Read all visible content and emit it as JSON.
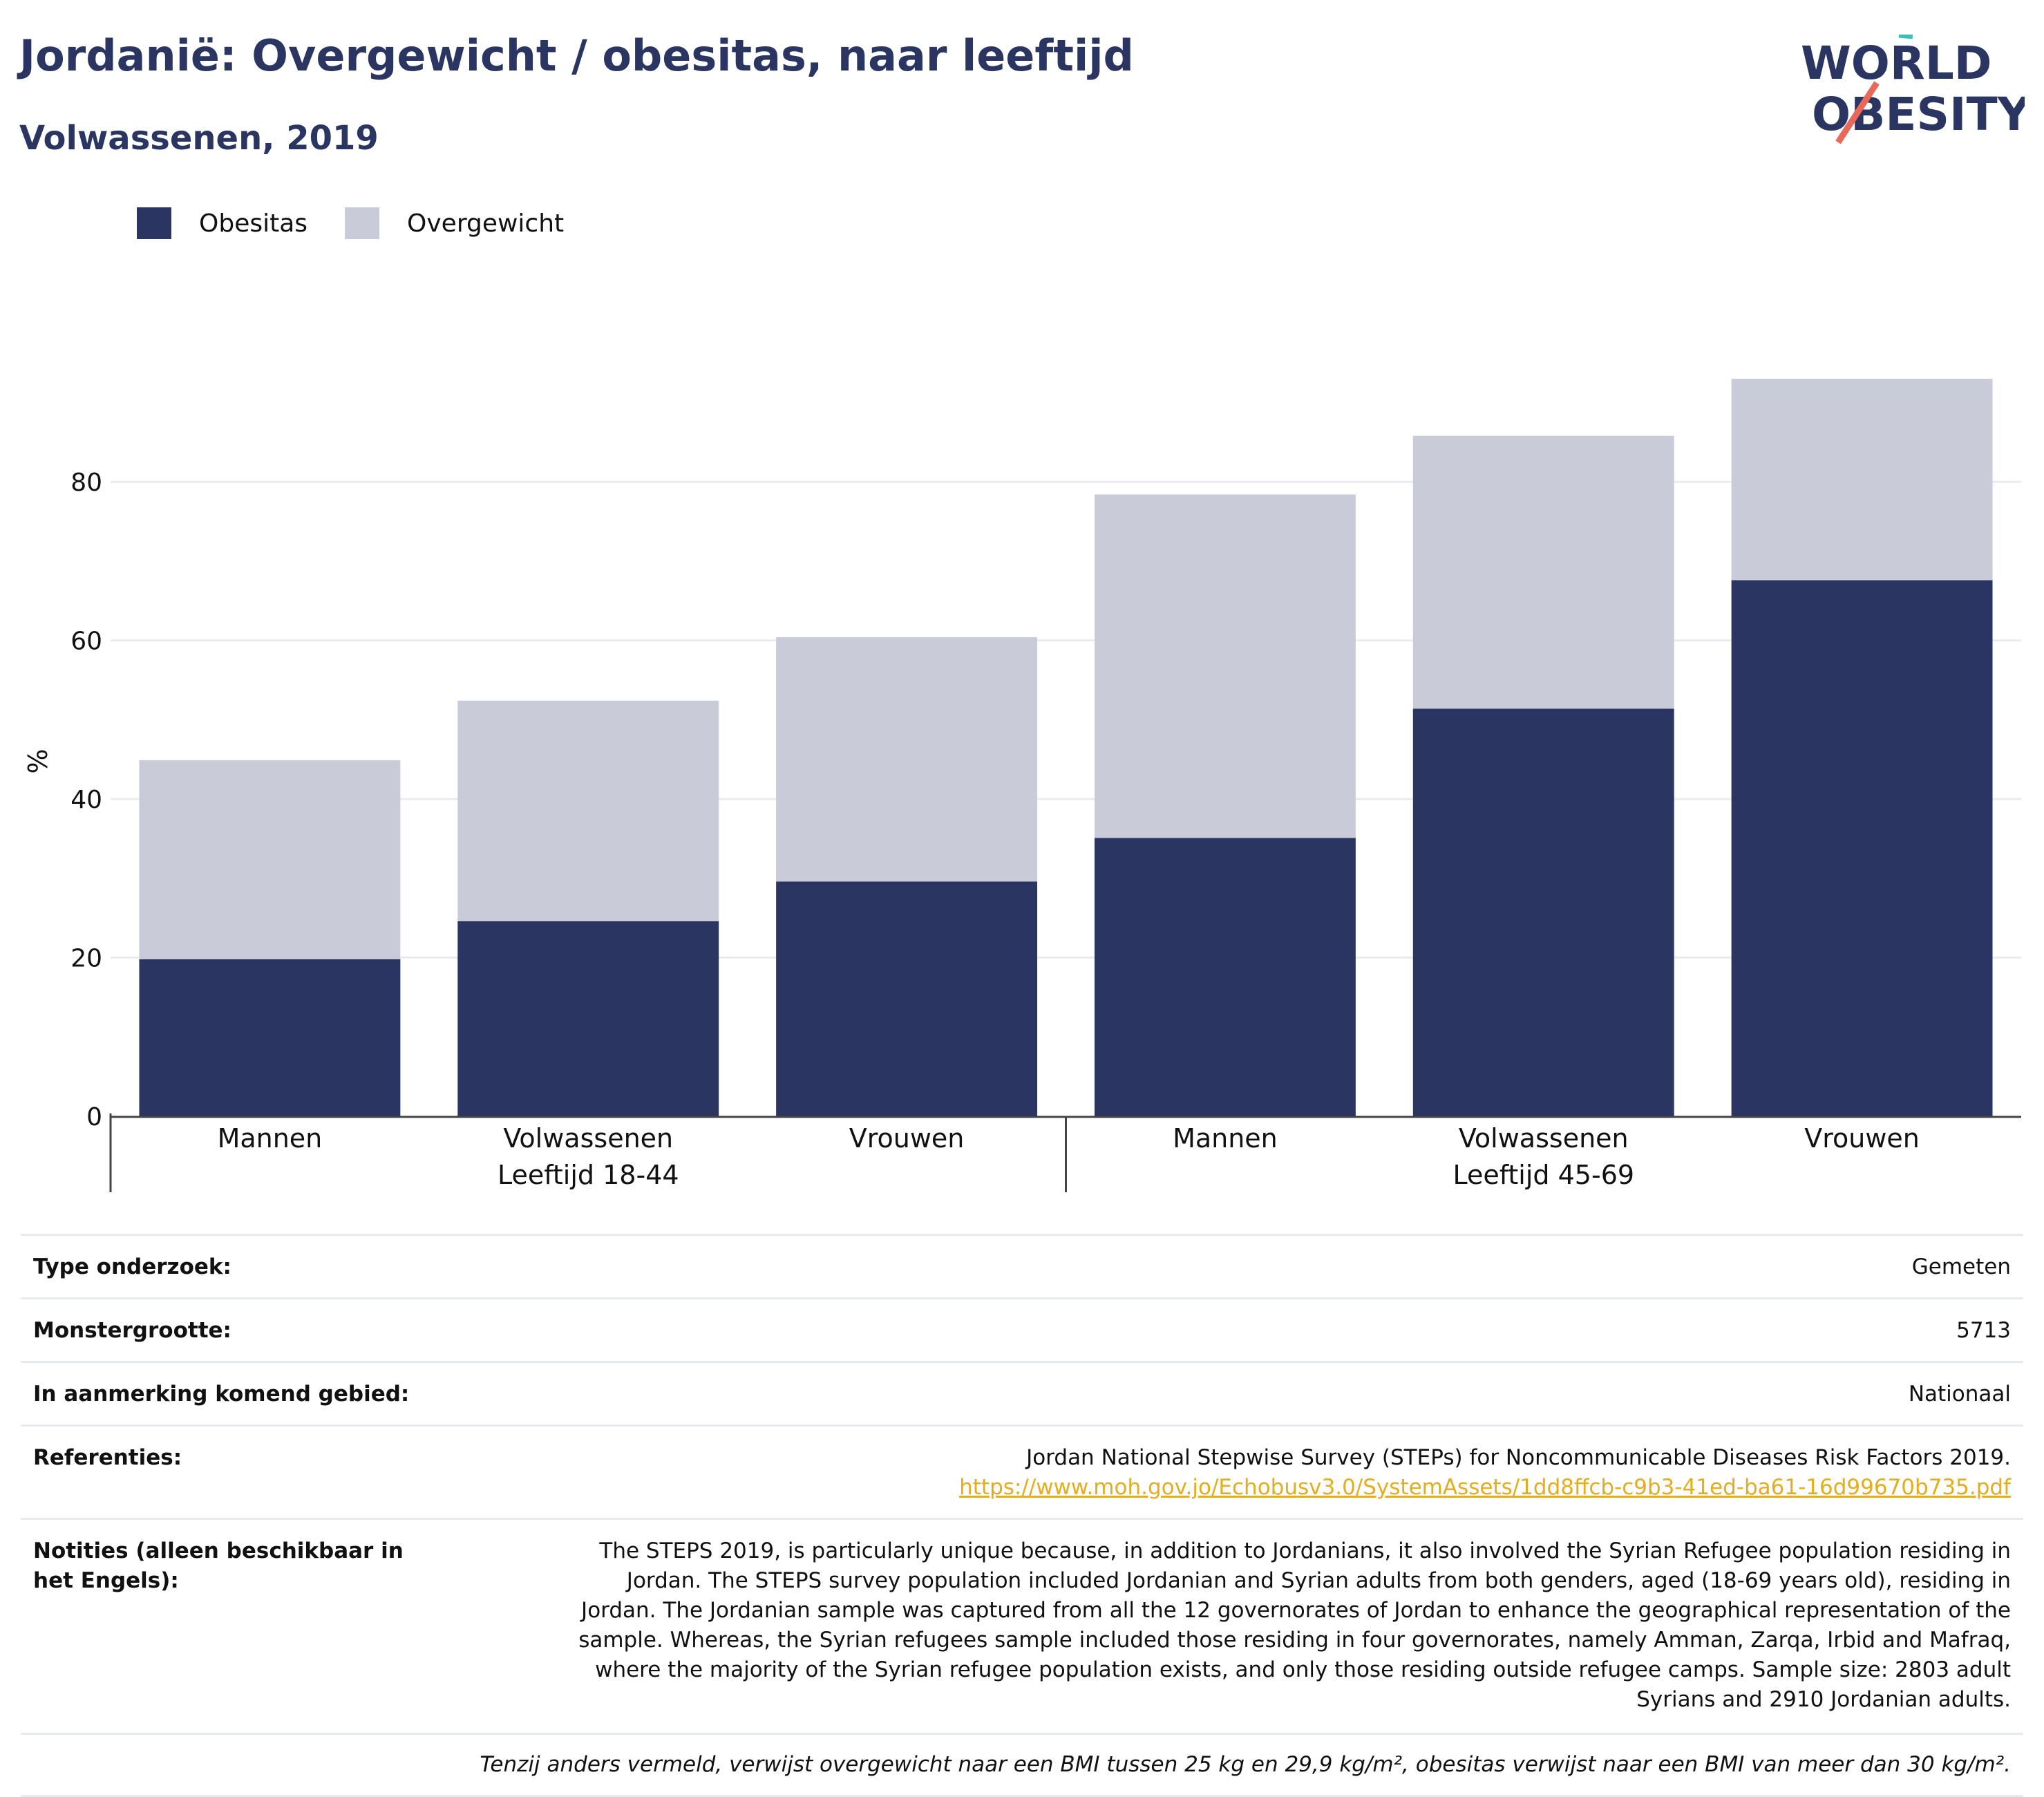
{
  "title": "Jordanië: Overgewicht / obesitas, naar leeftijd",
  "subtitle": "Volwassenen, 2019",
  "logo": {
    "line1": "WORLD",
    "line2": "OBESITY"
  },
  "colors": {
    "obesitas": "#2a3561",
    "overgewicht": "#c9ccd8",
    "accent_title": "#2a3561",
    "link": "#e4ad1c"
  },
  "legend": [
    {
      "label": "Obesitas",
      "color": "#2a3561"
    },
    {
      "label": "Overgewicht",
      "color": "#c9ccd8"
    }
  ],
  "chart_data": {
    "type": "bar",
    "stacked": true,
    "ylabel": "%",
    "ylim": [
      0,
      93
    ],
    "yticks": [
      0,
      20,
      40,
      60,
      80
    ],
    "grid": true,
    "groups": [
      {
        "label": "Leeftijd 18-44",
        "categories": [
          "Mannen",
          "Volwassenen",
          "Vrouwen"
        ]
      },
      {
        "label": "Leeftijd 45-69",
        "categories": [
          "Mannen",
          "Volwassenen",
          "Vrouwen"
        ]
      }
    ],
    "series": [
      {
        "name": "Obesitas",
        "values": [
          19.8,
          24.6,
          29.6,
          35.1,
          51.4,
          67.6
        ]
      },
      {
        "name": "Overgewicht",
        "values": [
          25.1,
          27.8,
          30.8,
          43.3,
          34.4,
          25.4
        ]
      }
    ]
  },
  "info": {
    "rows": [
      {
        "label": "Type onderzoek:",
        "value": "Gemeten"
      },
      {
        "label": "Monstergrootte:",
        "value": "5713"
      },
      {
        "label": "In aanmerking komend gebied:",
        "value": "Nationaal"
      }
    ],
    "references": {
      "label": "Referenties:",
      "text": "Jordan National Stepwise Survey (STEPs) for Noncommunicable Diseases Risk Factors 2019.",
      "link": "https://www.moh.gov.jo/Echobusv3.0/SystemAssets/1dd8ffcb-c9b3-41ed-ba61-16d99670b735.pdf"
    },
    "notes": {
      "label": "Notities (alleen beschikbaar in het Engels):",
      "text": "The STEPS 2019, is particularly unique because, in addition to Jordanians, it also involved the Syrian Refugee population residing in Jordan. The STEPS survey population included Jordanian and Syrian adults from both genders, aged (18-69 years old), residing in Jordan. The Jordanian sample was captured from all the 12 governorates of Jordan to enhance the geographical representation of the sample. Whereas, the Syrian refugees sample included those residing in four governorates, namely Amman, Zarqa, Irbid and Mafraq, where the majority of the Syrian refugee population exists, and only those residing outside refugee camps. Sample size: 2803 adult Syrians and 2910 Jordanian adults."
    },
    "footnote": "Tenzij anders vermeld, verwijst overgewicht naar een BMI tussen 25 kg en 29,9 kg/m², obesitas verwijst naar een BMI van meer dan 30 kg/m²."
  }
}
